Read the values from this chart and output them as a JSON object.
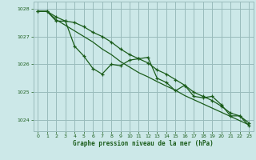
{
  "title": "Graphe pression niveau de la mer (hPa)",
  "background_color": "#cce8e8",
  "grid_color": "#99bbbb",
  "line_color": "#1a5c1a",
  "xlim": [
    -0.5,
    23.5
  ],
  "ylim": [
    1023.6,
    1028.25
  ],
  "yticks": [
    1024,
    1025,
    1026,
    1027,
    1028
  ],
  "xticks": [
    0,
    1,
    2,
    3,
    4,
    5,
    6,
    7,
    8,
    9,
    10,
    11,
    12,
    13,
    14,
    15,
    16,
    17,
    18,
    19,
    20,
    21,
    22,
    23
  ],
  "series1_x": [
    0,
    1,
    2,
    3,
    4,
    5,
    6,
    7,
    8,
    9,
    10,
    11,
    12,
    13,
    14,
    15,
    16,
    17,
    18,
    19,
    20,
    21,
    22,
    23
  ],
  "series1_y": [
    1027.9,
    1027.9,
    1027.55,
    1027.55,
    1026.65,
    1026.3,
    1025.85,
    1025.65,
    1026.0,
    1025.95,
    1026.15,
    1026.2,
    1026.25,
    1025.5,
    1025.35,
    1025.05,
    1025.25,
    1024.85,
    1024.8,
    1024.85,
    1024.55,
    1024.15,
    1024.15,
    1023.8
  ],
  "series2_x": [
    0,
    1,
    2,
    3,
    4,
    5,
    6,
    7,
    8,
    9,
    10,
    11,
    12,
    13,
    14,
    15,
    16,
    17,
    18,
    19,
    20,
    21,
    22,
    23
  ],
  "series2_y": [
    1027.9,
    1027.9,
    1027.7,
    1027.55,
    1027.5,
    1027.35,
    1027.15,
    1027.0,
    1026.8,
    1026.55,
    1026.35,
    1026.2,
    1026.05,
    1025.8,
    1025.65,
    1025.45,
    1025.25,
    1025.0,
    1024.85,
    1024.7,
    1024.5,
    1024.25,
    1024.15,
    1023.9
  ],
  "series3_x": [
    0,
    1,
    2,
    3,
    4,
    5,
    6,
    7,
    8,
    9,
    10,
    11,
    12,
    13,
    14,
    15,
    16,
    17,
    18,
    19,
    20,
    21,
    22,
    23
  ],
  "series3_y": [
    1027.9,
    1027.9,
    1027.6,
    1027.4,
    1027.2,
    1027.0,
    1026.8,
    1026.55,
    1026.35,
    1026.1,
    1025.9,
    1025.7,
    1025.55,
    1025.38,
    1025.22,
    1025.07,
    1024.88,
    1024.73,
    1024.58,
    1024.43,
    1024.28,
    1024.13,
    1023.98,
    1023.83
  ]
}
